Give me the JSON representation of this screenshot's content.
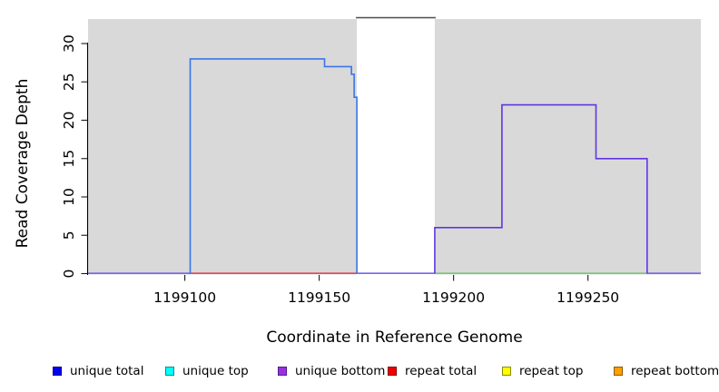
{
  "chart_data": {
    "type": "line",
    "subtype": "step-coverage",
    "title": "",
    "xlabel": "Coordinate in Reference Genome",
    "ylabel": "Read Coverage Depth",
    "xlim": [
      1199064,
      1199292
    ],
    "ylim": [
      0,
      33.2
    ],
    "x_ticks": [
      "1199100",
      "1199150",
      "1199200",
      "1199250"
    ],
    "x_tick_values": [
      1199100,
      1199150,
      1199200,
      1199250
    ],
    "y_ticks": [
      "0",
      "5",
      "10",
      "15",
      "20",
      "25",
      "30"
    ],
    "y_tick_values": [
      0,
      5,
      10,
      15,
      20,
      25,
      30
    ],
    "grid": false,
    "plot_bg_color": "#d9d9d9",
    "gap_region": {
      "from": 1199164,
      "to": 1199193,
      "color": "#ffffff",
      "top_line_color": "#4d4d4d"
    },
    "series": [
      {
        "name": "unique total",
        "color": "#3a75e8",
        "step_points": [
          [
            1199102,
            0
          ],
          [
            1199102,
            28
          ],
          [
            1199152,
            28
          ],
          [
            1199152,
            27
          ],
          [
            1199162,
            27
          ],
          [
            1199162,
            26
          ],
          [
            1199163,
            26
          ],
          [
            1199163,
            23
          ],
          [
            1199164,
            23
          ],
          [
            1199164,
            0
          ]
        ]
      },
      {
        "name": "unique bottom",
        "color": "#6136e0",
        "step_points": [
          [
            1199193,
            0
          ],
          [
            1199193,
            6
          ],
          [
            1199218,
            6
          ],
          [
            1199218,
            22
          ],
          [
            1199253,
            22
          ],
          [
            1199253,
            15
          ],
          [
            1199272,
            15
          ],
          [
            1199272,
            0
          ]
        ]
      }
    ],
    "baseline_segments": [
      {
        "color": "#7b63ea",
        "from": 1199064,
        "to": 1199102
      },
      {
        "color": "#e84458",
        "from": 1199102,
        "to": 1199164
      },
      {
        "color": "#7b63ea",
        "from": 1199164,
        "to": 1199193
      },
      {
        "color": "#74c974",
        "from": 1199193,
        "to": 1199272
      },
      {
        "color": "#7b63ea",
        "from": 1199272,
        "to": 1199292
      }
    ],
    "legend_position": "bottom"
  },
  "legend": {
    "items": [
      {
        "label": "unique total",
        "color": "#0000ee",
        "border": "#00008b"
      },
      {
        "label": "unique top",
        "color": "#00ffff",
        "border": "#008b8b"
      },
      {
        "label": "unique bottom",
        "color": "#9b30e0",
        "border": "#551a8b"
      },
      {
        "label": "repeat total",
        "color": "#ee0000",
        "border": "#8b0000"
      },
      {
        "label": "repeat top",
        "color": "#ffff00",
        "border": "#8b8b00"
      },
      {
        "label": "repeat bottom",
        "color": "#ff9f00",
        "border": "#8b5a00"
      }
    ]
  }
}
